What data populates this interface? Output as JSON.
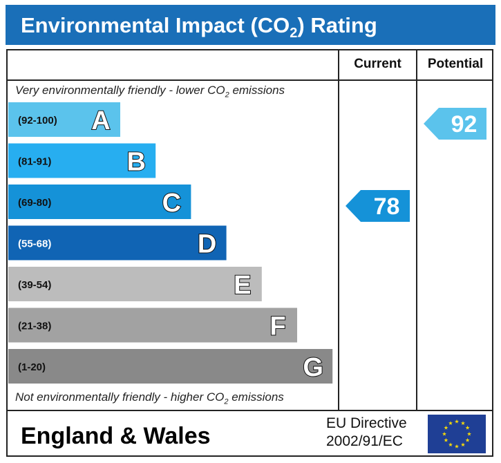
{
  "title": {
    "prefix": "Environmental Impact (CO",
    "sub": "2",
    "suffix": ") Rating"
  },
  "columns": {
    "current": "Current",
    "potential": "Potential"
  },
  "top_note": {
    "prefix": "Very environmentally friendly - lower CO",
    "sub": "2",
    "suffix": " emissions"
  },
  "bottom_note": {
    "prefix": "Not environmentally friendly - higher CO",
    "sub": "2",
    "suffix": " emissions"
  },
  "footer": {
    "region": "England & Wales",
    "directive_line1": "EU Directive",
    "directive_line2": "2002/91/EC"
  },
  "icons": {
    "eu_flag": "eu-flag-icon"
  },
  "chart_data": {
    "type": "bar",
    "categories": [
      "A",
      "B",
      "C",
      "D",
      "E",
      "F",
      "G"
    ],
    "ranges": [
      "(92-100)",
      "(81-91)",
      "(69-80)",
      "(55-68)",
      "(39-54)",
      "(21-38)",
      "(1-20)"
    ],
    "band_colors": [
      "#5bc3ec",
      "#27aef0",
      "#1592d8",
      "#1064b4",
      "#bcbcbc",
      "#a2a2a2",
      "#898989"
    ],
    "current": {
      "value": 78,
      "band": "C",
      "color": "#1592d8"
    },
    "potential": {
      "value": 92,
      "band": "A",
      "color": "#5bc3ec"
    }
  }
}
